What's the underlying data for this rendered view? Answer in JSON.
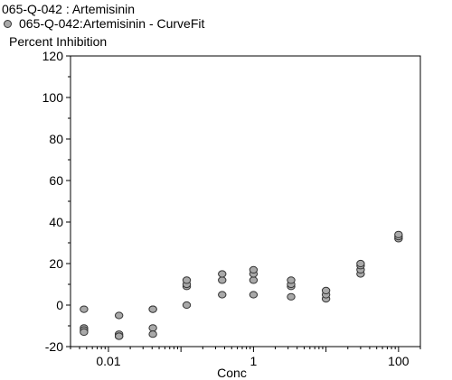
{
  "chart_data": {
    "type": "scatter",
    "title": "065-Q-042  : Artemisinin",
    "legend": [
      {
        "label": "065-Q-042:Artemisinin - CurveFit",
        "marker": "circle",
        "fill": "#a9a9a9",
        "stroke": "#333333"
      }
    ],
    "xlabel": "Conc",
    "ylabel": "Percent Inhibition",
    "xscale": "log",
    "xlim": [
      0.003,
      200
    ],
    "ylim": [
      -20,
      120
    ],
    "xticks": [
      {
        "value": 0.01,
        "label": "0.01"
      },
      {
        "value": 1,
        "label": "1"
      },
      {
        "value": 100,
        "label": "100"
      }
    ],
    "yticks": [
      {
        "value": -20,
        "label": "-20"
      },
      {
        "value": 0,
        "label": "0"
      },
      {
        "value": 20,
        "label": "20"
      },
      {
        "value": 40,
        "label": "40"
      },
      {
        "value": 60,
        "label": "60"
      },
      {
        "value": 80,
        "label": "80"
      },
      {
        "value": 100,
        "label": "100"
      },
      {
        "value": 120,
        "label": "120"
      }
    ],
    "grid": false,
    "series": [
      {
        "points": [
          {
            "x": 0.0046,
            "y": -2
          },
          {
            "x": 0.0046,
            "y": -11
          },
          {
            "x": 0.0046,
            "y": -12
          },
          {
            "x": 0.0046,
            "y": -13
          },
          {
            "x": 0.014,
            "y": -5
          },
          {
            "x": 0.014,
            "y": -14
          },
          {
            "x": 0.014,
            "y": -15
          },
          {
            "x": 0.014,
            "y": -15
          },
          {
            "x": 0.041,
            "y": -2
          },
          {
            "x": 0.041,
            "y": -2
          },
          {
            "x": 0.041,
            "y": -11
          },
          {
            "x": 0.041,
            "y": -14
          },
          {
            "x": 0.12,
            "y": 0
          },
          {
            "x": 0.12,
            "y": 9
          },
          {
            "x": 0.12,
            "y": 10
          },
          {
            "x": 0.12,
            "y": 12
          },
          {
            "x": 0.37,
            "y": 5
          },
          {
            "x": 0.37,
            "y": 12
          },
          {
            "x": 0.37,
            "y": 15
          },
          {
            "x": 1.0,
            "y": 5
          },
          {
            "x": 1.0,
            "y": 12
          },
          {
            "x": 1.0,
            "y": 15
          },
          {
            "x": 1.0,
            "y": 17
          },
          {
            "x": 3.3,
            "y": 4
          },
          {
            "x": 3.3,
            "y": 9
          },
          {
            "x": 3.3,
            "y": 10
          },
          {
            "x": 3.3,
            "y": 12
          },
          {
            "x": 10,
            "y": 3
          },
          {
            "x": 10,
            "y": 5
          },
          {
            "x": 10,
            "y": 7
          },
          {
            "x": 30,
            "y": 15
          },
          {
            "x": 30,
            "y": 17
          },
          {
            "x": 30,
            "y": 19
          },
          {
            "x": 30,
            "y": 20
          },
          {
            "x": 100,
            "y": 32
          },
          {
            "x": 100,
            "y": 33
          },
          {
            "x": 100,
            "y": 34
          }
        ]
      }
    ]
  }
}
